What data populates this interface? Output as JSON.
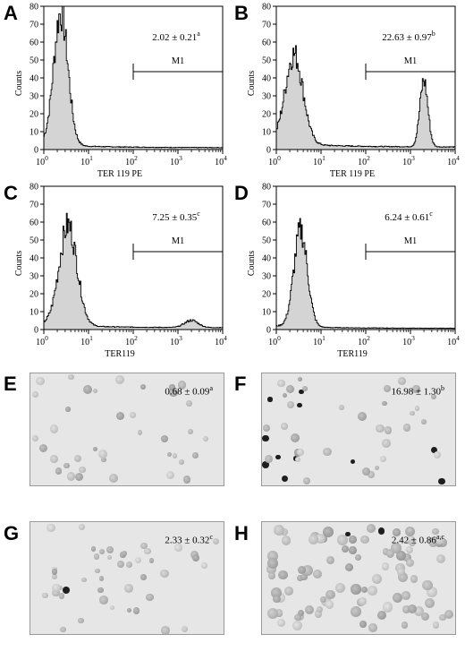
{
  "figure": {
    "histogram_panels": [
      {
        "letter": "A",
        "stat_value": "2.02 ± 0.21",
        "stat_sup": "a",
        "gate_label": "M1",
        "x_axis_title": "TER 119 PE",
        "y_axis_title": "Counts",
        "y_ticks": [
          "0",
          "10",
          "20",
          "30",
          "40",
          "50",
          "60",
          "70",
          "80"
        ],
        "x_tick_exponents": [
          "0",
          "1",
          "2",
          "3",
          "4"
        ]
      },
      {
        "letter": "B",
        "stat_value": "22.63 ± 0.97",
        "stat_sup": "b",
        "gate_label": "M1",
        "x_axis_title": "TER 119 PE",
        "y_axis_title": "Counts",
        "y_ticks": [
          "0",
          "10",
          "20",
          "30",
          "40",
          "50",
          "60",
          "70",
          "80"
        ],
        "x_tick_exponents": [
          "0",
          "1",
          "2",
          "3",
          "4"
        ]
      },
      {
        "letter": "C",
        "stat_value": "7.25 ± 0.35",
        "stat_sup": "c",
        "gate_label": "M1",
        "x_axis_title": "TER119",
        "y_axis_title": "Counts",
        "y_ticks": [
          "0",
          "10",
          "20",
          "30",
          "40",
          "50",
          "60",
          "70",
          "80"
        ],
        "x_tick_exponents": [
          "0",
          "1",
          "2",
          "3",
          "4"
        ]
      },
      {
        "letter": "D",
        "stat_value": "6.24 ± 0.61",
        "stat_sup": "c",
        "gate_label": "M1",
        "x_axis_title": "TER119",
        "y_axis_title": "Counts",
        "y_ticks": [
          "0",
          "10",
          "20",
          "30",
          "40",
          "50",
          "60",
          "70",
          "80"
        ],
        "x_tick_exponents": [
          "0",
          "1",
          "2",
          "3",
          "4"
        ]
      }
    ],
    "micrograph_panels": [
      {
        "letter": "E",
        "stat_value": "0.68 ± 0.09",
        "stat_sup": "a"
      },
      {
        "letter": "F",
        "stat_value": "16.98 ± 1.30",
        "stat_sup": "b"
      },
      {
        "letter": "G",
        "stat_value": "2.33 ± 0.32",
        "stat_sup": "c"
      },
      {
        "letter": "H",
        "stat_value": "2.42 ± 0.86",
        "stat_sup": "a,c"
      }
    ]
  },
  "chart_data": [
    {
      "type": "area",
      "panel": "A",
      "xlabel": "TER 119 PE",
      "ylabel": "Counts",
      "x_scale": "log",
      "xlim": [
        1,
        10000
      ],
      "ylim": [
        0,
        80
      ],
      "gate": {
        "name": "M1",
        "from": 100,
        "to": 10000
      },
      "peaks": [
        {
          "x": 2.4,
          "y": 74,
          "width": 0.16
        }
      ],
      "baseline": 3
    },
    {
      "type": "area",
      "panel": "B",
      "xlabel": "TER 119 PE",
      "ylabel": "Counts",
      "x_scale": "log",
      "xlim": [
        1,
        10000
      ],
      "ylim": [
        0,
        80
      ],
      "gate": {
        "name": "M1",
        "from": 100,
        "to": 10000
      },
      "peaks": [
        {
          "x": 2.5,
          "y": 50,
          "width": 0.2
        },
        {
          "x": 2000,
          "y": 37,
          "width": 0.09
        }
      ],
      "baseline": 4
    },
    {
      "type": "area",
      "panel": "C",
      "xlabel": "TER119",
      "ylabel": "Counts",
      "x_scale": "log",
      "xlim": [
        1,
        10000
      ],
      "ylim": [
        0,
        80
      ],
      "gate": {
        "name": "M1",
        "from": 100,
        "to": 10000
      },
      "peaks": [
        {
          "x": 3.5,
          "y": 56,
          "width": 0.2
        },
        {
          "x": 2000,
          "y": 4,
          "width": 0.15
        }
      ],
      "baseline": 3
    },
    {
      "type": "area",
      "panel": "D",
      "xlabel": "TER119",
      "ylabel": "Counts",
      "x_scale": "log",
      "xlim": [
        1,
        10000
      ],
      "ylim": [
        0,
        80
      ],
      "gate": {
        "name": "M1",
        "from": 100,
        "to": 10000
      },
      "peaks": [
        {
          "x": 3.5,
          "y": 54,
          "width": 0.15
        }
      ],
      "baseline": 2
    }
  ]
}
